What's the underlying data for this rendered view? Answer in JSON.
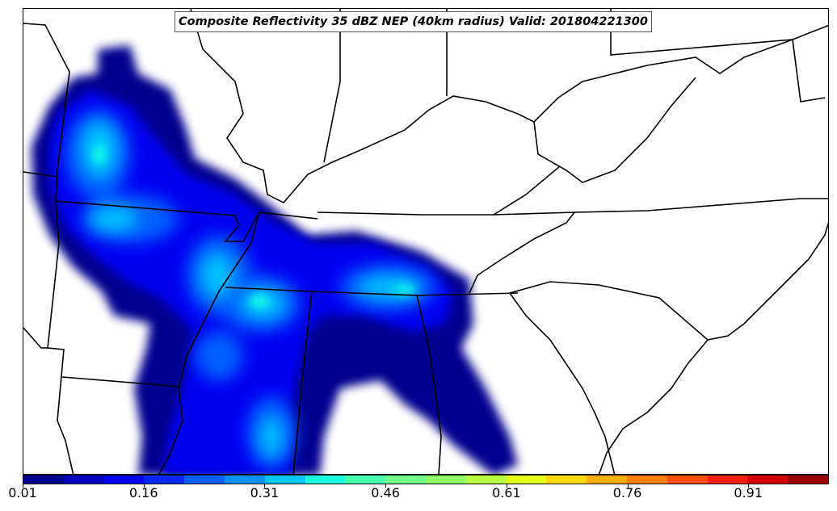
{
  "title": "Composite Reflectivity 35 dBZ NEP (40km radius) Valid: 201804221300",
  "colorbar": {
    "min": 0.01,
    "max": 1.01,
    "colors": [
      "#00008f",
      "#0000c0",
      "#0000f0",
      "#0028ff",
      "#0060ff",
      "#0090ff",
      "#00c4ff",
      "#18ffe0",
      "#48ffb0",
      "#70ff88",
      "#90ff68",
      "#b8ff40",
      "#e4ff14",
      "#ffd800",
      "#ffac00",
      "#ff8000",
      "#ff5000",
      "#ff2000",
      "#d40000",
      "#9a0000"
    ],
    "ticks": [
      "0.01",
      "0.16",
      "0.31",
      "0.46",
      "0.61",
      "0.76",
      "0.91"
    ],
    "tick_values": [
      0.01,
      0.16,
      0.31,
      0.46,
      0.61,
      0.76,
      0.91
    ]
  }
}
